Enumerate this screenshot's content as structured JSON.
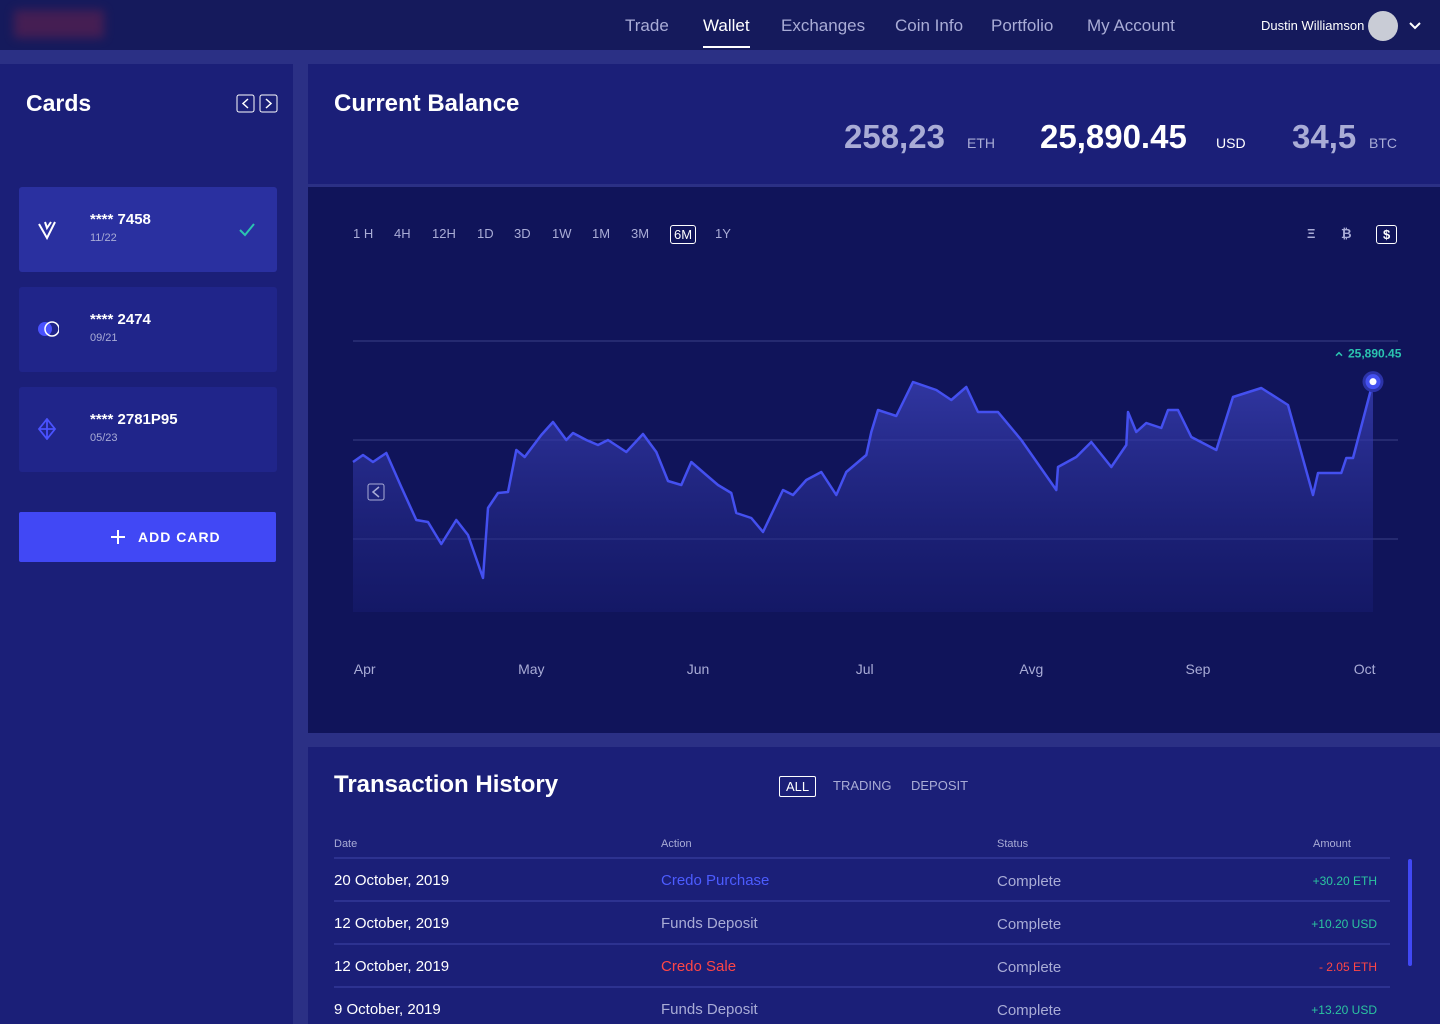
{
  "nav": {
    "links": [
      "Trade",
      "Wallet",
      "Exchanges",
      "Coin Info",
      "Portfolio",
      "My Account"
    ],
    "active": 1,
    "user": "Dustin Williamson"
  },
  "cards": {
    "title": "Cards",
    "items": [
      {
        "number": "**** 7458",
        "expiry": "11/22"
      },
      {
        "number": "**** 2474",
        "expiry": "09/21"
      },
      {
        "number": "**** 2781P95",
        "expiry": "05/23"
      }
    ],
    "add": "ADD CARD"
  },
  "balance": {
    "title": "Current Balance",
    "amounts": [
      {
        "value": "258,23",
        "unit": "ETH"
      },
      {
        "value": "25,890.45",
        "unit": "USD"
      },
      {
        "value": "34,5",
        "unit": "BTC"
      }
    ]
  },
  "chart_data": {
    "type": "area",
    "color": "#4450f0",
    "ranges": [
      "1 H",
      "4H",
      "12H",
      "1D",
      "3D",
      "1W",
      "1M",
      "3M",
      "6M",
      "1Y"
    ],
    "active_range": 8,
    "currencies": [
      "Ξ",
      "₿",
      "$"
    ],
    "active_currency": 2,
    "x": [
      -0.07,
      -0.01,
      0.05,
      0.13,
      0.22,
      0.31,
      0.38,
      0.46,
      0.55,
      0.62,
      0.71,
      0.74,
      0.8,
      0.86,
      0.91,
      0.96,
      1.06,
      1.13,
      1.21,
      1.25,
      1.33,
      1.4,
      1.46,
      1.57,
      1.67,
      1.75,
      1.82,
      1.9,
      1.96,
      2.05,
      2.12,
      2.2,
      2.23,
      2.32,
      2.39,
      2.51,
      2.57,
      2.65,
      2.74,
      2.83,
      2.89,
      3.01,
      3.04,
      3.08,
      3.19,
      3.29,
      3.43,
      3.52,
      3.61,
      3.68,
      3.8,
      3.94,
      4.15,
      4.16,
      4.27,
      4.36,
      4.48,
      4.57,
      4.58,
      4.63,
      4.69,
      4.78,
      4.82,
      4.88,
      4.96,
      5.11,
      5.21,
      5.38,
      5.54,
      5.69,
      5.72,
      5.86,
      5.89,
      5.93,
      6.05
    ],
    "values": [
      17780,
      18480,
      17780,
      18690,
      15250,
      11920,
      11720,
      9490,
      11920,
      10400,
      6060,
      13130,
      14650,
      14750,
      18990,
      18280,
      20510,
      21820,
      20000,
      20710,
      20000,
      19490,
      20000,
      18790,
      20610,
      18790,
      15860,
      15450,
      17780,
      16460,
      15450,
      14650,
      12630,
      12120,
      10710,
      14950,
      14440,
      15960,
      16770,
      14440,
      16770,
      18480,
      20810,
      23030,
      22420,
      25860,
      25050,
      24040,
      25350,
      22830,
      22830,
      20000,
      14950,
      17270,
      18280,
      19800,
      17270,
      19490,
      22830,
      20810,
      21720,
      21210,
      23030,
      23030,
      20300,
      18990,
      24340,
      25250,
      23540,
      14440,
      16670,
      16670,
      18180,
      18180,
      25890.45
    ],
    "last_label": "25,890.45",
    "xlim": [
      -0.07,
      6.05
    ],
    "ylim": [
      0,
      30000
    ],
    "xticks": [
      {
        "value": 0,
        "label": "Apr"
      },
      {
        "value": 1,
        "label": "May"
      },
      {
        "value": 2,
        "label": "Jun"
      },
      {
        "value": 3,
        "label": "Jul"
      },
      {
        "value": 4,
        "label": "Avg"
      },
      {
        "value": 5,
        "label": "Sep"
      },
      {
        "value": 6,
        "label": "Oct"
      }
    ]
  },
  "transactions": {
    "title": "Transaction History",
    "filters": [
      "ALL",
      "TRADING",
      "DEPOSIT"
    ],
    "active_filter": 0,
    "columns": [
      "Date",
      "Action",
      "Status",
      "Amount"
    ],
    "rows": [
      [
        "20 October, 2019",
        "Credo Purchase",
        "Complete",
        "+30.20 ETH"
      ],
      [
        "12 October, 2019",
        "Funds Deposit",
        "Complete",
        "+10.20 USD"
      ],
      [
        "12 October, 2019",
        "Credo Sale",
        "Complete",
        "- 2.05 ETH"
      ],
      [
        "9 October, 2019",
        "Funds Deposit",
        "Complete",
        "+13.20 USD"
      ]
    ]
  }
}
